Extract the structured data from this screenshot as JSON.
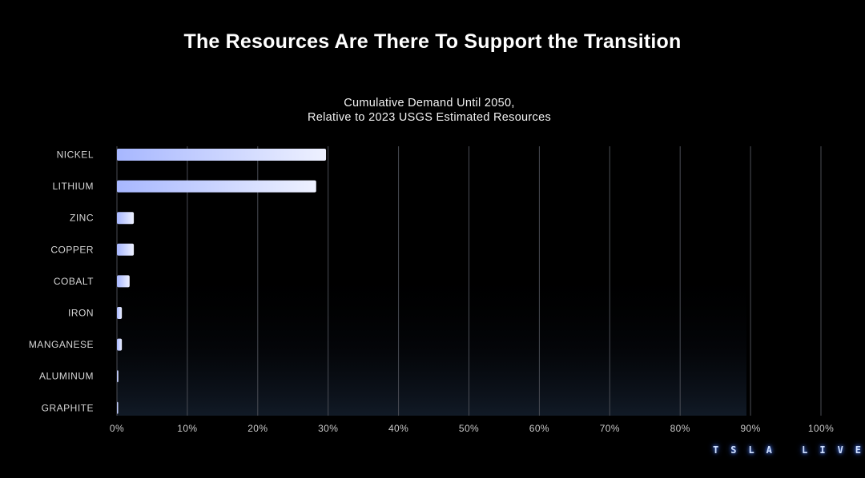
{
  "slide": {
    "title": "The Resources Are There To Support the Transition"
  },
  "watermark": "TSLA LIVE",
  "colors": {
    "background": "#000000",
    "bar_start": "#a7b7ff",
    "bar_end": "#eef1ff",
    "gridline": "#4a4d55"
  },
  "chart_data": {
    "type": "bar",
    "orientation": "horizontal",
    "title_lines": [
      "Cumulative Demand Until 2050,",
      "Relative to 2023 USGS Estimated Resources"
    ],
    "categories": [
      "NICKEL",
      "LITHIUM",
      "ZINC",
      "COPPER",
      "COBALT",
      "IRON",
      "MANGANESE",
      "ALUMINUM",
      "GRAPHITE"
    ],
    "values": [
      29.7,
      28.3,
      2.4,
      2.4,
      1.8,
      0.7,
      0.7,
      0.2,
      0.1
    ],
    "xlim": [
      0,
      100
    ],
    "xticks": [
      0,
      10,
      20,
      30,
      40,
      50,
      60,
      70,
      80,
      90,
      100
    ],
    "xtick_labels": [
      "0%",
      "10%",
      "20%",
      "30%",
      "40%",
      "50%",
      "60%",
      "70%",
      "80%",
      "90%",
      "100%"
    ],
    "xlabel": "",
    "ylabel": "",
    "grid": true
  }
}
